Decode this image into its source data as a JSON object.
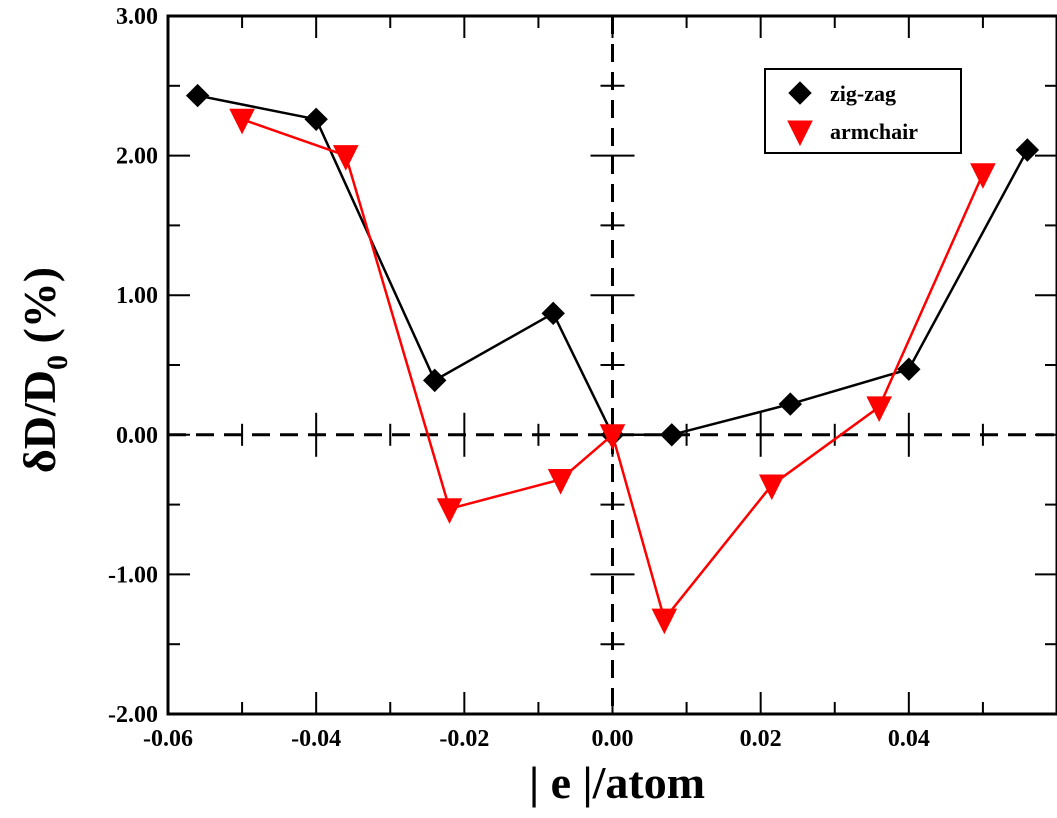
{
  "chart_data": {
    "type": "line",
    "title": "",
    "xlabel": "| e |/atom",
    "ylabel_main": "δD/D",
    "ylabel_sub": "0",
    "ylabel_suffix": " (%)",
    "xlim": [
      -0.06,
      0.06
    ],
    "ylim": [
      -2.0,
      3.0
    ],
    "x_ticks": [
      -0.06,
      -0.04,
      -0.02,
      0.0,
      0.02,
      0.04
    ],
    "x_tick_labels": [
      "-0.06",
      "-0.04",
      "-0.02",
      "0.00",
      "0.02",
      "0.04"
    ],
    "y_ticks": [
      -2.0,
      -1.0,
      0.0,
      1.0,
      2.0,
      3.0
    ],
    "y_tick_labels": [
      "-2.00",
      "-1.00",
      "0.00",
      "1.00",
      "2.00",
      "3.00"
    ],
    "grid": false,
    "reference_lines": {
      "x": 0.0,
      "y": 0.0,
      "style": "dashed"
    },
    "legend_position": "top-right",
    "series": [
      {
        "name": "zig-zag",
        "color": "#000000",
        "marker": "diamond",
        "x": [
          -0.056,
          -0.04,
          -0.024,
          -0.008,
          0.0,
          0.008,
          0.024,
          0.04,
          0.056
        ],
        "y": [
          2.43,
          2.26,
          0.39,
          0.87,
          0.0,
          0.0,
          0.22,
          0.47,
          2.04
        ]
      },
      {
        "name": "armchair",
        "color": "#ff0000",
        "marker": "triangle-down",
        "x": [
          -0.05,
          -0.036,
          -0.022,
          -0.007,
          0.0,
          0.007,
          0.0215,
          0.036,
          0.05
        ],
        "y": [
          2.26,
          2.0,
          -0.53,
          -0.32,
          0.0,
          -1.32,
          -0.36,
          0.2,
          1.87
        ]
      }
    ]
  }
}
